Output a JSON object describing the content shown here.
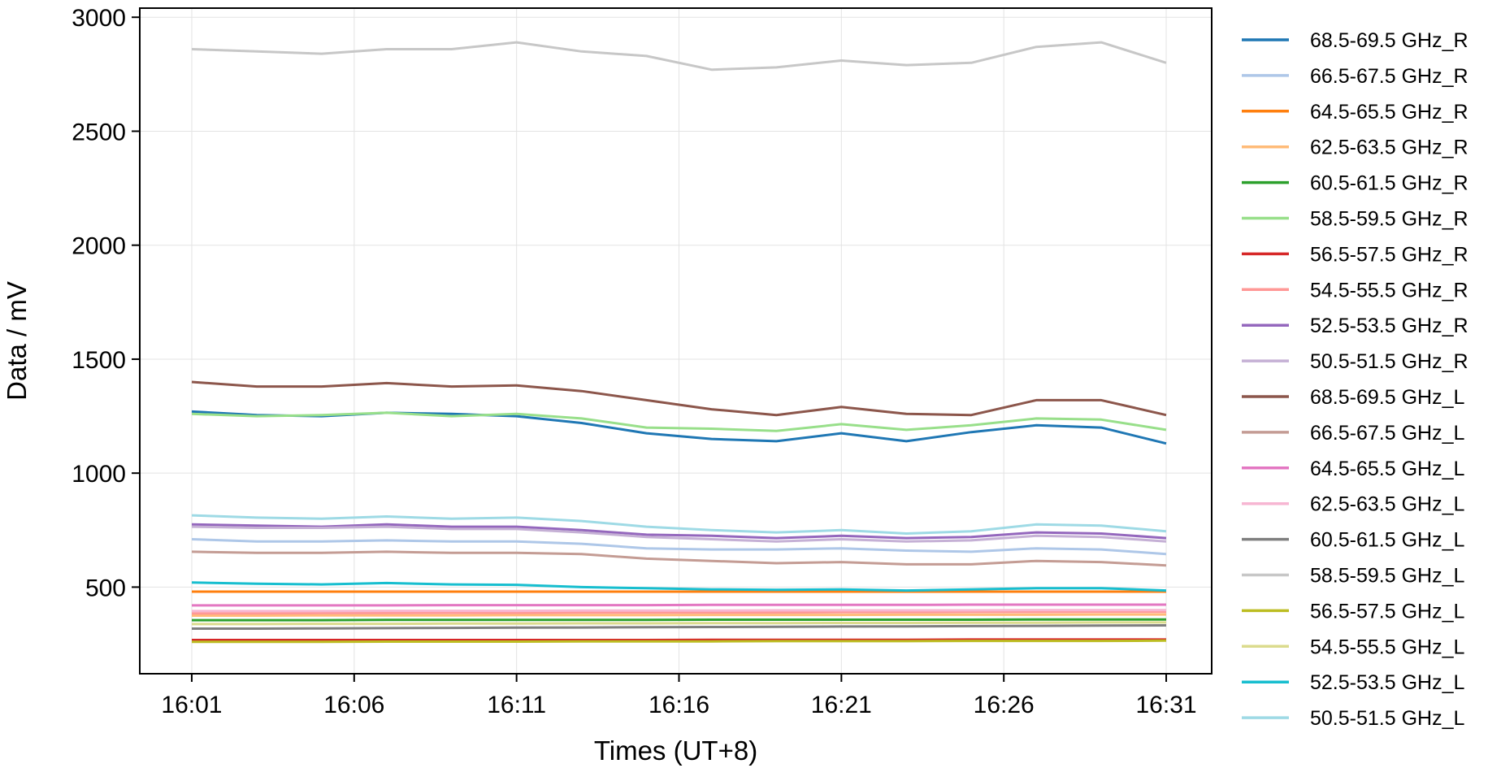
{
  "chart_data": {
    "type": "line",
    "title": "",
    "xlabel": "Times (UT+8)",
    "ylabel": "Data / mV",
    "x_ticks": [
      "16:01",
      "16:06",
      "16:11",
      "16:16",
      "16:21",
      "16:26",
      "16:31"
    ],
    "x_tick_minutes": [
      0,
      5,
      10,
      15,
      20,
      25,
      30
    ],
    "y_ticks": [
      "500",
      "1000",
      "1500",
      "2000",
      "2500",
      "3000"
    ],
    "y_tick_values": [
      500,
      1000,
      1500,
      2000,
      2500,
      3000
    ],
    "xlim_minutes": [
      -1.6,
      31.4
    ],
    "ylim": [
      120,
      3040
    ],
    "grid": true,
    "legend_position": "outside-right",
    "x": [
      0,
      2,
      4,
      6,
      8,
      10,
      12,
      14,
      16,
      18,
      20,
      22,
      24,
      26,
      28,
      30
    ],
    "series": [
      {
        "name": "68.5-69.5 GHz_R",
        "color": "#1f77b4",
        "values": [
          1270,
          1255,
          1250,
          1265,
          1260,
          1250,
          1220,
          1175,
          1150,
          1140,
          1175,
          1140,
          1180,
          1210,
          1200,
          1130
        ]
      },
      {
        "name": "66.5-67.5 GHz_R",
        "color": "#aec7e8",
        "values": [
          710,
          700,
          700,
          705,
          700,
          700,
          690,
          670,
          665,
          665,
          670,
          660,
          655,
          670,
          665,
          645
        ]
      },
      {
        "name": "64.5-65.5 GHz_R",
        "color": "#ff7f0e",
        "values": [
          480,
          480,
          480,
          480,
          480,
          480,
          480,
          480,
          480,
          480,
          480,
          480,
          480,
          480,
          480,
          480
        ]
      },
      {
        "name": "62.5-63.5 GHz_R",
        "color": "#ffbb78",
        "values": [
          375,
          375,
          376,
          376,
          376,
          377,
          377,
          377,
          378,
          378,
          378,
          379,
          379,
          379,
          380,
          380
        ]
      },
      {
        "name": "60.5-61.5 GHz_R",
        "color": "#2ca02c",
        "values": [
          355,
          355,
          355,
          356,
          356,
          356,
          356,
          356,
          357,
          357,
          357,
          357,
          357,
          358,
          358,
          358
        ]
      },
      {
        "name": "58.5-59.5 GHz_R",
        "color": "#98df8a",
        "values": [
          1260,
          1250,
          1255,
          1265,
          1250,
          1260,
          1240,
          1200,
          1195,
          1185,
          1215,
          1190,
          1210,
          1240,
          1235,
          1190
        ]
      },
      {
        "name": "56.5-57.5 GHz_R",
        "color": "#d62728",
        "values": [
          268,
          268,
          268,
          268,
          268,
          268,
          268,
          268,
          269,
          269,
          269,
          269,
          270,
          270,
          270,
          270
        ]
      },
      {
        "name": "54.5-55.5 GHz_R",
        "color": "#ff9896",
        "values": [
          385,
          385,
          386,
          386,
          387,
          387,
          388,
          388,
          389,
          389,
          390,
          390,
          391,
          391,
          392,
          392
        ]
      },
      {
        "name": "52.5-53.5 GHz_R",
        "color": "#9467bd",
        "values": [
          775,
          770,
          765,
          775,
          765,
          765,
          750,
          730,
          725,
          715,
          725,
          715,
          720,
          740,
          735,
          715
        ]
      },
      {
        "name": "50.5-51.5 GHz_R",
        "color": "#c5b0d5",
        "values": [
          765,
          760,
          760,
          765,
          755,
          755,
          740,
          720,
          710,
          700,
          710,
          700,
          705,
          725,
          720,
          700
        ]
      },
      {
        "name": "68.5-69.5 GHz_L",
        "color": "#8c564b",
        "values": [
          1400,
          1380,
          1380,
          1395,
          1380,
          1385,
          1360,
          1320,
          1280,
          1255,
          1290,
          1260,
          1255,
          1320,
          1320,
          1255
        ]
      },
      {
        "name": "66.5-67.5 GHz_L",
        "color": "#c49c94",
        "values": [
          655,
          650,
          650,
          655,
          650,
          650,
          645,
          625,
          615,
          605,
          610,
          600,
          600,
          615,
          610,
          595
        ]
      },
      {
        "name": "64.5-65.5 GHz_L",
        "color": "#e377c2",
        "values": [
          420,
          420,
          420,
          420,
          421,
          421,
          421,
          421,
          422,
          422,
          422,
          422,
          423,
          423,
          423,
          423
        ]
      },
      {
        "name": "62.5-63.5 GHz_L",
        "color": "#f7b6d2",
        "values": [
          395,
          395,
          395,
          396,
          396,
          396,
          397,
          397,
          397,
          398,
          398,
          398,
          398,
          399,
          399,
          399
        ]
      },
      {
        "name": "60.5-61.5 GHz_L",
        "color": "#7f7f7f",
        "values": [
          318,
          318,
          319,
          320,
          321,
          322,
          323,
          324,
          325,
          326,
          327,
          328,
          329,
          330,
          331,
          332
        ]
      },
      {
        "name": "58.5-59.5 GHz_L",
        "color": "#c7c7c7",
        "values": [
          2860,
          2850,
          2840,
          2860,
          2860,
          2890,
          2850,
          2830,
          2770,
          2780,
          2810,
          2790,
          2800,
          2870,
          2890,
          2800
        ]
      },
      {
        "name": "56.5-57.5 GHz_L",
        "color": "#bcbd22",
        "values": [
          260,
          260,
          260,
          261,
          261,
          261,
          262,
          262,
          262,
          263,
          263,
          263,
          264,
          264,
          264,
          265
        ]
      },
      {
        "name": "54.5-55.5 GHz_L",
        "color": "#dbdb8d",
        "values": [
          338,
          338,
          339,
          339,
          340,
          340,
          341,
          341,
          342,
          342,
          343,
          343,
          344,
          344,
          345,
          345
        ]
      },
      {
        "name": "52.5-53.5 GHz_L",
        "color": "#17becf",
        "values": [
          520,
          515,
          512,
          518,
          512,
          510,
          500,
          495,
          490,
          488,
          490,
          485,
          490,
          495,
          495,
          485
        ]
      },
      {
        "name": "50.5-51.5 GHz_L",
        "color": "#9edae5",
        "values": [
          815,
          805,
          800,
          810,
          800,
          805,
          790,
          765,
          750,
          740,
          750,
          735,
          745,
          775,
          770,
          745
        ]
      }
    ]
  }
}
